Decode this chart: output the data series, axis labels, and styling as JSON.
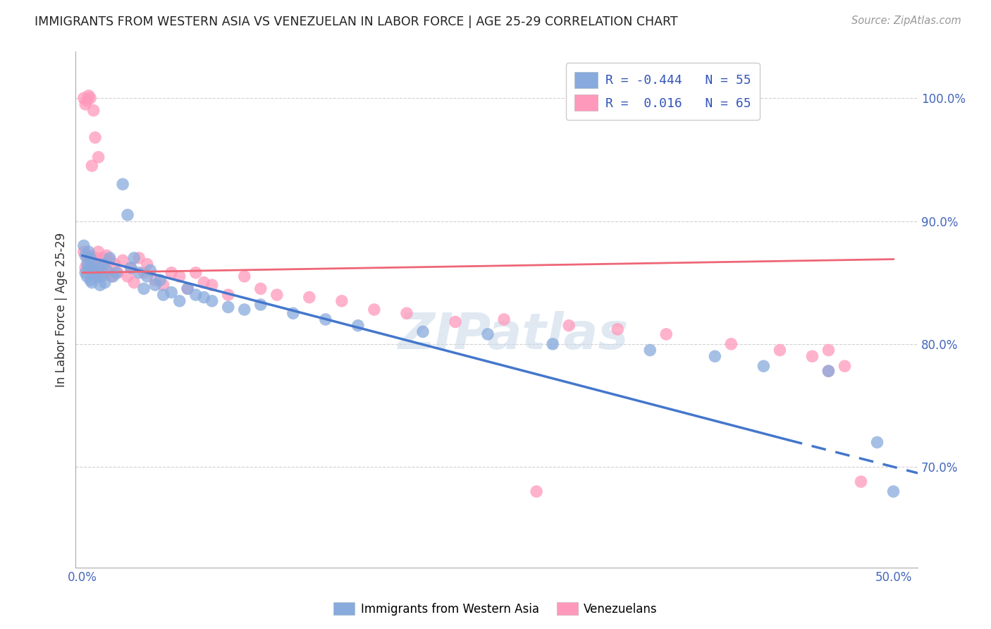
{
  "title": "IMMIGRANTS FROM WESTERN ASIA VS VENEZUELAN IN LABOR FORCE | AGE 25-29 CORRELATION CHART",
  "source": "Source: ZipAtlas.com",
  "ylabel": "In Labor Force | Age 25-29",
  "xlim": [
    -0.004,
    0.515
  ],
  "ylim": [
    0.618,
    1.038
  ],
  "yticks": [
    0.7,
    0.8,
    0.9,
    1.0
  ],
  "ytick_labels": [
    "70.0%",
    "80.0%",
    "90.0%",
    "100.0%"
  ],
  "xtick_labels_show": [
    "0.0%",
    "50.0%"
  ],
  "color_blue": "#88AADD",
  "color_pink": "#FF99BB",
  "color_blue_line": "#4477CC",
  "color_pink_line": "#EE6677",
  "trend_blue_x0": 0.0,
  "trend_blue_y0": 0.872,
  "trend_blue_x1": 0.435,
  "trend_blue_y1": 0.722,
  "trend_blue_dash_x0": 0.435,
  "trend_blue_dash_y0": 0.722,
  "trend_blue_dash_x1": 0.515,
  "trend_blue_dash_y1": 0.695,
  "trend_pink_x0": 0.0,
  "trend_pink_y0": 0.858,
  "trend_pink_x1": 0.5,
  "trend_pink_y1": 0.869,
  "watermark": "ZIPatlas",
  "legend_entries": [
    {
      "label": "R = -0.444   N = 55",
      "color": "#88AADD"
    },
    {
      "label": "R =  0.016   N = 65",
      "color": "#FF99BB"
    }
  ],
  "bottom_legend": [
    "Immigrants from Western Asia",
    "Venezuelans"
  ],
  "blue_pts": [
    [
      0.001,
      0.88
    ],
    [
      0.002,
      0.872
    ],
    [
      0.002,
      0.858
    ],
    [
      0.003,
      0.865
    ],
    [
      0.003,
      0.855
    ],
    [
      0.004,
      0.875
    ],
    [
      0.004,
      0.862
    ],
    [
      0.005,
      0.87
    ],
    [
      0.005,
      0.852
    ],
    [
      0.006,
      0.865
    ],
    [
      0.006,
      0.85
    ],
    [
      0.007,
      0.86
    ],
    [
      0.008,
      0.858
    ],
    [
      0.009,
      0.855
    ],
    [
      0.01,
      0.862
    ],
    [
      0.011,
      0.848
    ],
    [
      0.012,
      0.855
    ],
    [
      0.013,
      0.865
    ],
    [
      0.014,
      0.85
    ],
    [
      0.015,
      0.86
    ],
    [
      0.017,
      0.87
    ],
    [
      0.019,
      0.855
    ],
    [
      0.021,
      0.858
    ],
    [
      0.025,
      0.93
    ],
    [
      0.028,
      0.905
    ],
    [
      0.03,
      0.862
    ],
    [
      0.032,
      0.87
    ],
    [
      0.035,
      0.858
    ],
    [
      0.038,
      0.845
    ],
    [
      0.04,
      0.855
    ],
    [
      0.042,
      0.86
    ],
    [
      0.045,
      0.848
    ],
    [
      0.048,
      0.852
    ],
    [
      0.05,
      0.84
    ],
    [
      0.055,
      0.842
    ],
    [
      0.06,
      0.835
    ],
    [
      0.065,
      0.845
    ],
    [
      0.07,
      0.84
    ],
    [
      0.075,
      0.838
    ],
    [
      0.08,
      0.835
    ],
    [
      0.09,
      0.83
    ],
    [
      0.1,
      0.828
    ],
    [
      0.11,
      0.832
    ],
    [
      0.13,
      0.825
    ],
    [
      0.15,
      0.82
    ],
    [
      0.17,
      0.815
    ],
    [
      0.21,
      0.81
    ],
    [
      0.25,
      0.808
    ],
    [
      0.29,
      0.8
    ],
    [
      0.35,
      0.795
    ],
    [
      0.39,
      0.79
    ],
    [
      0.42,
      0.782
    ],
    [
      0.46,
      0.778
    ],
    [
      0.49,
      0.72
    ],
    [
      0.5,
      0.68
    ]
  ],
  "pink_pts": [
    [
      0.001,
      0.875
    ],
    [
      0.001,
      1.0
    ],
    [
      0.002,
      0.862
    ],
    [
      0.002,
      0.995
    ],
    [
      0.003,
      0.87
    ],
    [
      0.003,
      0.998
    ],
    [
      0.004,
      0.865
    ],
    [
      0.004,
      1.002
    ],
    [
      0.005,
      0.872
    ],
    [
      0.005,
      1.0
    ],
    [
      0.006,
      0.868
    ],
    [
      0.006,
      0.945
    ],
    [
      0.007,
      0.862
    ],
    [
      0.007,
      0.99
    ],
    [
      0.008,
      0.87
    ],
    [
      0.008,
      0.968
    ],
    [
      0.009,
      0.858
    ],
    [
      0.01,
      0.875
    ],
    [
      0.01,
      0.952
    ],
    [
      0.011,
      0.865
    ],
    [
      0.012,
      0.87
    ],
    [
      0.013,
      0.858
    ],
    [
      0.014,
      0.865
    ],
    [
      0.015,
      0.872
    ],
    [
      0.016,
      0.858
    ],
    [
      0.017,
      0.868
    ],
    [
      0.018,
      0.855
    ],
    [
      0.02,
      0.865
    ],
    [
      0.022,
      0.858
    ],
    [
      0.025,
      0.868
    ],
    [
      0.028,
      0.855
    ],
    [
      0.03,
      0.862
    ],
    [
      0.032,
      0.85
    ],
    [
      0.035,
      0.87
    ],
    [
      0.038,
      0.858
    ],
    [
      0.04,
      0.865
    ],
    [
      0.045,
      0.852
    ],
    [
      0.05,
      0.848
    ],
    [
      0.055,
      0.858
    ],
    [
      0.06,
      0.855
    ],
    [
      0.065,
      0.845
    ],
    [
      0.07,
      0.858
    ],
    [
      0.075,
      0.85
    ],
    [
      0.08,
      0.848
    ],
    [
      0.09,
      0.84
    ],
    [
      0.1,
      0.855
    ],
    [
      0.11,
      0.845
    ],
    [
      0.12,
      0.84
    ],
    [
      0.14,
      0.838
    ],
    [
      0.16,
      0.835
    ],
    [
      0.18,
      0.828
    ],
    [
      0.2,
      0.825
    ],
    [
      0.23,
      0.818
    ],
    [
      0.26,
      0.82
    ],
    [
      0.3,
      0.815
    ],
    [
      0.33,
      0.812
    ],
    [
      0.36,
      0.808
    ],
    [
      0.4,
      0.8
    ],
    [
      0.43,
      0.795
    ],
    [
      0.45,
      0.79
    ],
    [
      0.46,
      0.795
    ],
    [
      0.47,
      0.782
    ],
    [
      0.46,
      0.778
    ],
    [
      0.48,
      0.688
    ],
    [
      0.28,
      0.68
    ]
  ]
}
